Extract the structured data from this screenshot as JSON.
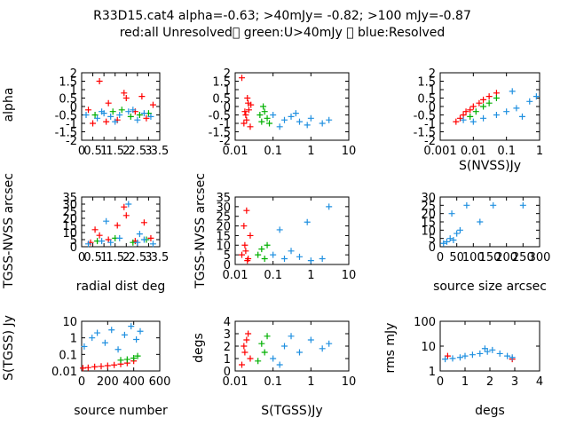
{
  "header": {
    "title_line1": "R33D15.cat4 alpha=-0.63; >40mJy= -0.82; >100 mJy=-0.87",
    "title_line2": "red:all Unresolved\u0000 green:U>40mJy \u0000 blue:Resolved"
  },
  "colors": {
    "red": "#ff0000",
    "green": "#00b000",
    "blue": "#2090e0"
  },
  "chart_data": [
    {
      "type": "scatter",
      "xlabel": "",
      "ylabel": "alpha",
      "xlim": [
        0,
        3.5
      ],
      "ylim": [
        -2,
        2
      ],
      "xscale": "linear",
      "yscale": "linear",
      "xticks": [
        "0",
        "0.5",
        "1",
        "1.5",
        "2",
        "2.5",
        "3",
        "3.5"
      ],
      "yticks": [
        "2",
        "1.5",
        "1",
        "0.5",
        "0",
        "-0.5",
        "-1",
        "-1.5",
        "-2"
      ],
      "series": [
        {
          "color": "red",
          "points": [
            [
              0.3,
              -0.2
            ],
            [
              0.8,
              1.5
            ],
            [
              1.2,
              0.2
            ],
            [
              1.6,
              -0.8
            ],
            [
              2.0,
              0.5
            ],
            [
              2.4,
              -0.3
            ],
            [
              2.9,
              -0.7
            ],
            [
              3.2,
              0.1
            ],
            [
              0.5,
              -1.0
            ],
            [
              1.9,
              0.8
            ],
            [
              2.7,
              0.6
            ],
            [
              1.1,
              -0.9
            ]
          ]
        },
        {
          "color": "green",
          "points": [
            [
              0.6,
              -0.5
            ],
            [
              1.4,
              -0.3
            ],
            [
              2.2,
              -0.6
            ],
            [
              3.0,
              -0.4
            ],
            [
              1.8,
              -0.2
            ],
            [
              2.6,
              -0.5
            ]
          ]
        },
        {
          "color": "blue",
          "points": [
            [
              0.2,
              -0.5
            ],
            [
              0.7,
              -0.7
            ],
            [
              1.0,
              -0.4
            ],
            [
              1.3,
              -0.6
            ],
            [
              1.7,
              -0.5
            ],
            [
              2.1,
              -0.3
            ],
            [
              2.5,
              -0.8
            ],
            [
              2.8,
              -0.4
            ],
            [
              3.1,
              -0.6
            ],
            [
              1.5,
              -0.9
            ],
            [
              2.3,
              -0.2
            ],
            [
              0.9,
              -0.3
            ]
          ]
        }
      ]
    },
    {
      "type": "scatter",
      "xlabel": "",
      "ylabel": "",
      "xlim": [
        0.01,
        10
      ],
      "ylim": [
        -2,
        2
      ],
      "xscale": "log",
      "yscale": "linear",
      "xticks": [
        "0.01",
        "0.1",
        "1",
        "10"
      ],
      "yticks": [
        "2",
        "1.5",
        "1",
        "0.5",
        "0",
        "-0.5",
        "-1",
        "-1.5",
        "-2"
      ],
      "series": [
        {
          "color": "red",
          "points": [
            [
              0.015,
              1.7
            ],
            [
              0.018,
              -0.3
            ],
            [
              0.02,
              -0.8
            ],
            [
              0.022,
              0.2
            ],
            [
              0.025,
              -1.2
            ],
            [
              0.019,
              -0.5
            ],
            [
              0.021,
              0.5
            ],
            [
              0.017,
              -1.0
            ],
            [
              0.023,
              -0.2
            ],
            [
              0.026,
              0.1
            ]
          ]
        },
        {
          "color": "green",
          "points": [
            [
              0.045,
              -0.5
            ],
            [
              0.05,
              -0.9
            ],
            [
              0.06,
              -0.3
            ],
            [
              0.07,
              -0.7
            ],
            [
              0.055,
              0.0
            ],
            [
              0.08,
              -1.0
            ]
          ]
        },
        {
          "color": "blue",
          "points": [
            [
              0.1,
              -0.5
            ],
            [
              0.2,
              -0.8
            ],
            [
              0.3,
              -0.6
            ],
            [
              0.5,
              -0.9
            ],
            [
              1.0,
              -0.7
            ],
            [
              2.0,
              -1.0
            ],
            [
              3.0,
              -0.8
            ],
            [
              0.15,
              -1.2
            ],
            [
              0.4,
              -0.4
            ],
            [
              0.8,
              -1.1
            ]
          ]
        }
      ]
    },
    {
      "type": "scatter",
      "xlabel": "S(NVSS)Jy",
      "ylabel": "",
      "xlim": [
        0.001,
        1
      ],
      "ylim": [
        -2,
        2
      ],
      "xscale": "log",
      "yscale": "linear",
      "xticks": [
        "0.001",
        "0.01",
        "0.1",
        "1"
      ],
      "yticks": [
        "2",
        "1.5",
        "1",
        "0.5",
        "0",
        "-0.5",
        "-1",
        "-1.5",
        "-2"
      ],
      "series": [
        {
          "color": "red",
          "points": [
            [
              0.003,
              -0.9
            ],
            [
              0.004,
              -0.7
            ],
            [
              0.005,
              -0.5
            ],
            [
              0.006,
              -0.3
            ],
            [
              0.008,
              -0.2
            ],
            [
              0.01,
              0.0
            ],
            [
              0.015,
              0.2
            ],
            [
              0.02,
              0.4
            ],
            [
              0.03,
              0.6
            ],
            [
              0.05,
              0.8
            ]
          ]
        },
        {
          "color": "green",
          "points": [
            [
              0.008,
              -0.6
            ],
            [
              0.012,
              -0.3
            ],
            [
              0.02,
              0.0
            ],
            [
              0.03,
              0.2
            ],
            [
              0.05,
              0.5
            ]
          ]
        },
        {
          "color": "blue",
          "points": [
            [
              0.005,
              -0.8
            ],
            [
              0.01,
              -0.9
            ],
            [
              0.02,
              -0.7
            ],
            [
              0.05,
              -0.5
            ],
            [
              0.1,
              -0.3
            ],
            [
              0.2,
              -0.1
            ],
            [
              0.5,
              0.3
            ],
            [
              0.8,
              0.6
            ],
            [
              0.3,
              -0.6
            ],
            [
              0.15,
              0.9
            ]
          ]
        }
      ]
    },
    {
      "type": "scatter",
      "xlabel": "radial dist deg",
      "ylabel": "TGSS-NVSS arcsec",
      "xlim": [
        0,
        3.5
      ],
      "ylim": [
        0,
        35
      ],
      "xscale": "linear",
      "yscale": "linear",
      "xticks": [
        "0",
        "0.5",
        "1",
        "1.5",
        "2",
        "2.5",
        "3",
        "3.5"
      ],
      "yticks": [
        "35",
        "30",
        "25",
        "20",
        "15",
        "10",
        "5",
        "0"
      ],
      "series": [
        {
          "color": "red",
          "points": [
            [
              0.4,
              3
            ],
            [
              0.8,
              8
            ],
            [
              1.2,
              5
            ],
            [
              1.6,
              15
            ],
            [
              2.0,
              22
            ],
            [
              2.4,
              4
            ],
            [
              2.8,
              17
            ],
            [
              3.1,
              6
            ],
            [
              0.6,
              12
            ],
            [
              1.9,
              28
            ]
          ]
        },
        {
          "color": "green",
          "points": [
            [
              0.7,
              4
            ],
            [
              1.5,
              6
            ],
            [
              2.3,
              3
            ],
            [
              2.9,
              5
            ]
          ]
        },
        {
          "color": "blue",
          "points": [
            [
              0.3,
              2
            ],
            [
              0.9,
              4
            ],
            [
              1.3,
              3
            ],
            [
              1.7,
              6
            ],
            [
              2.1,
              30
            ],
            [
              2.5,
              3
            ],
            [
              2.8,
              5
            ],
            [
              3.2,
              2
            ],
            [
              1.1,
              18
            ],
            [
              2.6,
              9
            ]
          ]
        }
      ]
    },
    {
      "type": "scatter",
      "xlabel": "",
      "ylabel": "TGSS-NVSS arcsec",
      "xlim": [
        0.01,
        10
      ],
      "ylim": [
        0,
        35
      ],
      "xscale": "log",
      "yscale": "linear",
      "xticks": [
        "0.01",
        "0.1",
        "1",
        "10"
      ],
      "yticks": [
        "35",
        "30",
        "25",
        "20",
        "15",
        "10",
        "5",
        "0"
      ],
      "series": [
        {
          "color": "red",
          "points": [
            [
              0.015,
              5
            ],
            [
              0.018,
              10
            ],
            [
              0.02,
              28
            ],
            [
              0.022,
              3
            ],
            [
              0.025,
              15
            ],
            [
              0.019,
              7
            ],
            [
              0.017,
              20
            ],
            [
              0.021,
              2
            ]
          ]
        },
        {
          "color": "green",
          "points": [
            [
              0.04,
              5
            ],
            [
              0.05,
              8
            ],
            [
              0.06,
              3
            ],
            [
              0.07,
              10
            ]
          ]
        },
        {
          "color": "blue",
          "points": [
            [
              0.1,
              5
            ],
            [
              0.2,
              3
            ],
            [
              0.5,
              4
            ],
            [
              1.0,
              2
            ],
            [
              2.0,
              3
            ],
            [
              0.3,
              7
            ],
            [
              0.15,
              18
            ],
            [
              3.0,
              30
            ],
            [
              0.8,
              22
            ]
          ]
        }
      ]
    },
    {
      "type": "scatter",
      "xlabel": "source size arcsec",
      "ylabel": "",
      "xlim": [
        0,
        300
      ],
      "ylim": [
        0,
        30
      ],
      "xscale": "linear",
      "yscale": "linear",
      "xticks": [
        "0",
        "50",
        "100",
        "150",
        "200",
        "250",
        "300"
      ],
      "yticks": [
        "30",
        "25",
        "20",
        "15",
        "10",
        "5",
        "0"
      ],
      "series": [
        {
          "color": "blue",
          "points": [
            [
              10,
              2
            ],
            [
              20,
              3
            ],
            [
              30,
              5
            ],
            [
              40,
              4
            ],
            [
              50,
              8
            ],
            [
              60,
              10
            ],
            [
              80,
              25
            ],
            [
              120,
              15
            ],
            [
              160,
              25
            ],
            [
              250,
              25
            ],
            [
              35,
              20
            ]
          ]
        }
      ]
    },
    {
      "type": "scatter",
      "xlabel": "source number",
      "ylabel": "S(TGSS) Jy",
      "xlim": [
        0,
        600
      ],
      "ylim": [
        0.01,
        10
      ],
      "xscale": "linear",
      "yscale": "log",
      "xticks": [
        "0",
        "200",
        "400",
        "600"
      ],
      "yticks": [
        "10",
        "1",
        "0.1",
        "0.01"
      ],
      "series": [
        {
          "color": "red",
          "points": [
            [
              10,
              0.015
            ],
            [
              50,
              0.016
            ],
            [
              100,
              0.018
            ],
            [
              150,
              0.019
            ],
            [
              200,
              0.021
            ],
            [
              250,
              0.023
            ],
            [
              300,
              0.026
            ],
            [
              350,
              0.03
            ],
            [
              400,
              0.04
            ]
          ]
        },
        {
          "color": "green",
          "points": [
            [
              300,
              0.045
            ],
            [
              350,
              0.05
            ],
            [
              400,
              0.06
            ],
            [
              430,
              0.08
            ]
          ]
        },
        {
          "color": "blue",
          "points": [
            [
              20,
              0.3
            ],
            [
              80,
              1.0
            ],
            [
              120,
              2.0
            ],
            [
              180,
              0.5
            ],
            [
              230,
              3.0
            ],
            [
              280,
              0.2
            ],
            [
              330,
              1.5
            ],
            [
              380,
              5.0
            ],
            [
              420,
              0.8
            ],
            [
              450,
              2.5
            ]
          ]
        }
      ]
    },
    {
      "type": "scatter",
      "xlabel": "S(TGSS)Jy",
      "ylabel": "degs",
      "xlim": [
        0.01,
        10
      ],
      "ylim": [
        0,
        4
      ],
      "xscale": "log",
      "yscale": "linear",
      "xticks": [
        "0.01",
        "0.1",
        "1",
        "10"
      ],
      "yticks": [
        "4",
        "3",
        "2",
        "1",
        "0"
      ],
      "series": [
        {
          "color": "red",
          "points": [
            [
              0.015,
              0.5
            ],
            [
              0.018,
              1.5
            ],
            [
              0.02,
              2.5
            ],
            [
              0.022,
              3.0
            ],
            [
              0.025,
              1.0
            ],
            [
              0.017,
              2.0
            ]
          ]
        },
        {
          "color": "green",
          "points": [
            [
              0.04,
              0.8
            ],
            [
              0.05,
              2.2
            ],
            [
              0.06,
              1.5
            ],
            [
              0.07,
              2.8
            ]
          ]
        },
        {
          "color": "blue",
          "points": [
            [
              0.1,
              1.0
            ],
            [
              0.2,
              2.0
            ],
            [
              0.5,
              1.5
            ],
            [
              1.0,
              2.5
            ],
            [
              2.0,
              1.8
            ],
            [
              0.3,
              2.8
            ],
            [
              0.15,
              0.5
            ],
            [
              3.0,
              2.2
            ]
          ]
        }
      ]
    },
    {
      "type": "scatter",
      "xlabel": "degs",
      "ylabel": "rms mJy",
      "xlim": [
        0,
        4
      ],
      "ylim": [
        1,
        100
      ],
      "xscale": "linear",
      "yscale": "log",
      "xticks": [
        "0",
        "1",
        "2",
        "3",
        "4"
      ],
      "yticks": [
        "100",
        "10",
        "1"
      ],
      "series": [
        {
          "color": "red",
          "points": [
            [
              0.3,
              4
            ],
            [
              2.9,
              3
            ]
          ]
        },
        {
          "color": "blue",
          "points": [
            [
              0.2,
              3
            ],
            [
              0.5,
              3.2
            ],
            [
              0.8,
              3.5
            ],
            [
              1.0,
              4
            ],
            [
              1.3,
              4.5
            ],
            [
              1.6,
              5
            ],
            [
              1.9,
              6
            ],
            [
              2.1,
              7
            ],
            [
              2.4,
              5
            ],
            [
              2.7,
              4
            ],
            [
              2.9,
              3.5
            ],
            [
              1.8,
              8
            ]
          ]
        }
      ]
    }
  ]
}
